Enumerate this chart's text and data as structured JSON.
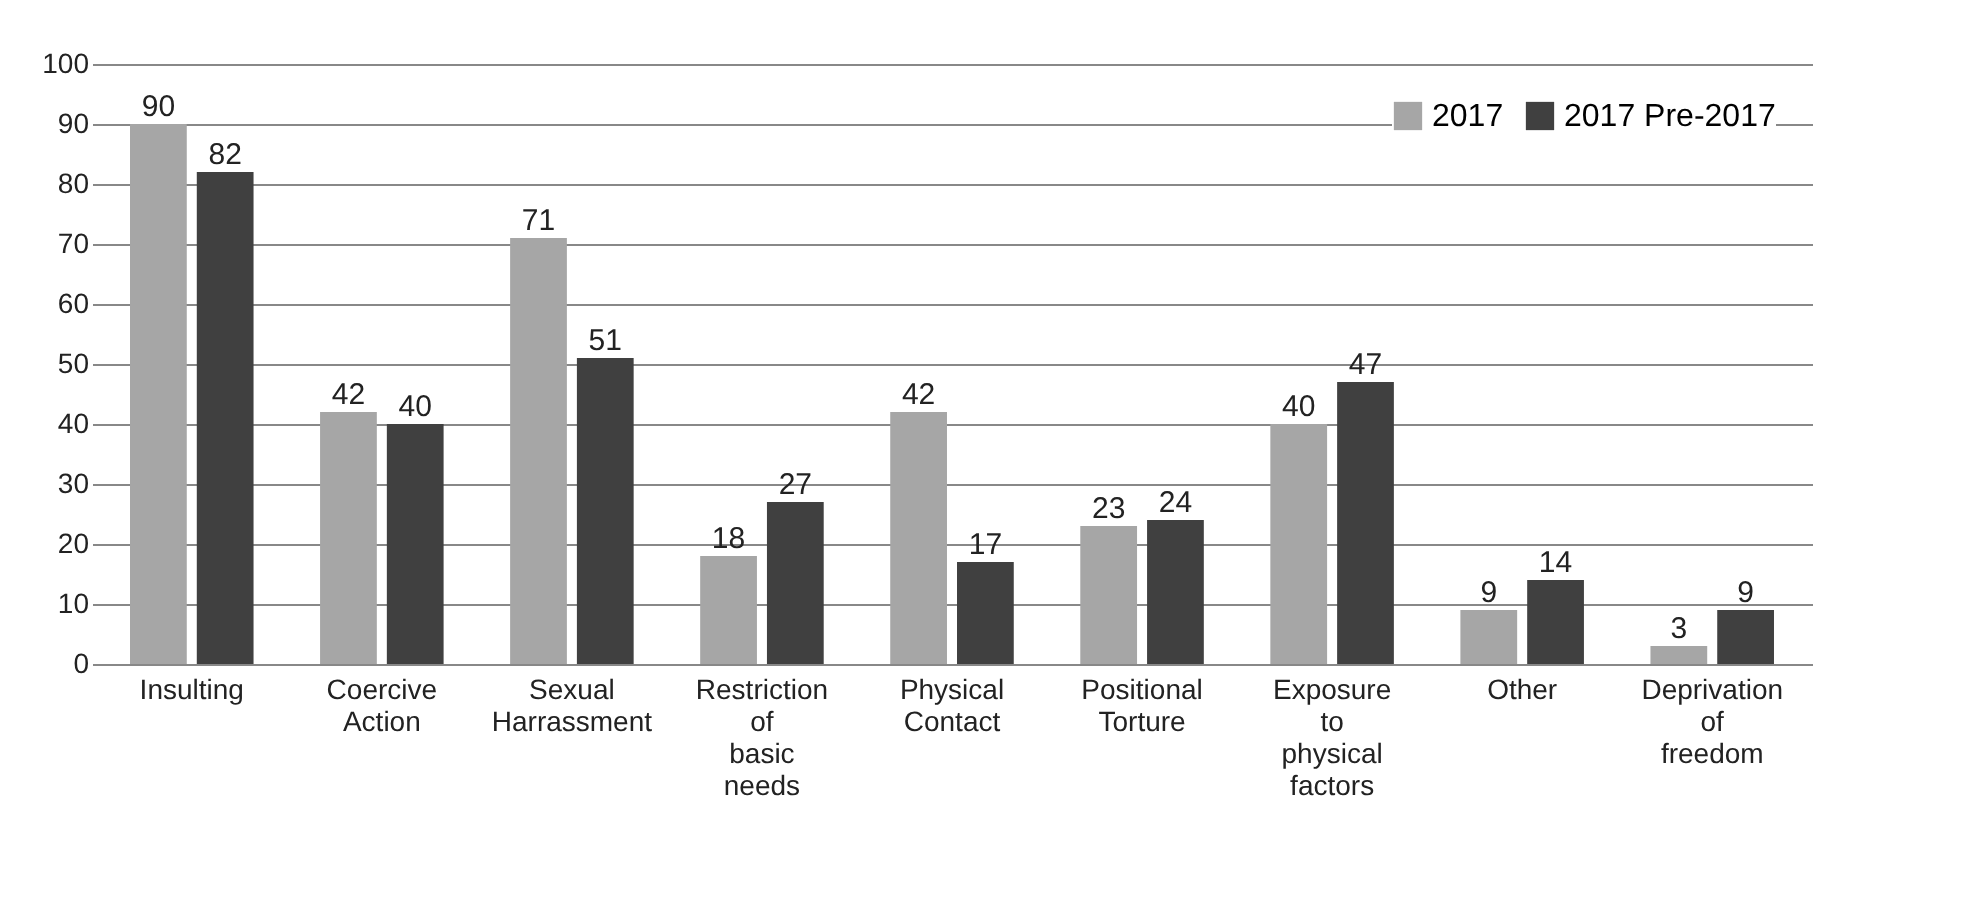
{
  "chart_data": {
    "type": "bar",
    "categories": [
      "Insulting",
      "Coercive Action",
      "Sexual Harrassment",
      "Restriction of basic needs",
      "Physical Contact",
      "Positional Torture",
      "Exposure to physical factors",
      "Other",
      "Deprivation of freedom"
    ],
    "series": [
      {
        "name": "2017",
        "color": "#a6a6a6",
        "values": [
          90,
          42,
          71,
          18,
          42,
          23,
          40,
          9,
          3
        ]
      },
      {
        "name": "2017 Pre-2017",
        "color": "#404040",
        "values": [
          82,
          40,
          51,
          27,
          17,
          24,
          47,
          14,
          9
        ]
      }
    ],
    "ylim": [
      0,
      100
    ],
    "yticks": [
      0,
      10,
      20,
      30,
      40,
      50,
      60,
      70,
      80,
      90,
      100
    ],
    "grid": "y",
    "legend": "top right",
    "data_labels": true
  }
}
